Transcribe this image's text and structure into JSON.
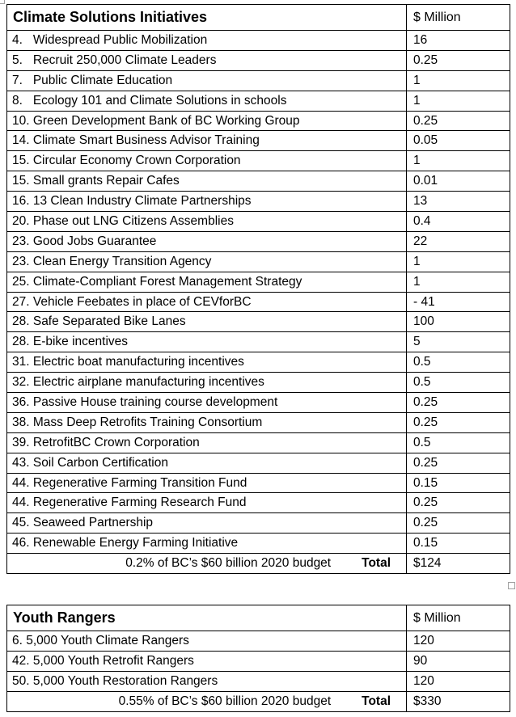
{
  "colors": {
    "background": "#ffffff",
    "table_border": "#000000",
    "text": "#000000",
    "handle_border": "#a0a0a0"
  },
  "tables": [
    {
      "title": "Climate Solutions Initiatives",
      "unit_header": "$ Million",
      "rows": [
        {
          "label": "4.   Widespread Public Mobilization",
          "value": "16"
        },
        {
          "label": "5.   Recruit 250,000 Climate Leaders",
          "value": "0.25"
        },
        {
          "label": "7.   Public Climate Education",
          "value": "1"
        },
        {
          "label": "8.   Ecology 101 and Climate Solutions in schools",
          "value": "1"
        },
        {
          "label": "10. Green Development Bank of BC Working Group",
          "value": "0.25"
        },
        {
          "label": "14. Climate Smart Business Advisor Training",
          "value": "0.05"
        },
        {
          "label": "15. Circular Economy Crown Corporation",
          "value": "1"
        },
        {
          "label": "15. Small grants Repair Cafes",
          "value": "0.01"
        },
        {
          "label": "16. 13 Clean Industry Climate Partnerships",
          "value": "13"
        },
        {
          "label": "20. Phase out LNG Citizens Assemblies",
          "value": "0.4"
        },
        {
          "label": "23. Good Jobs Guarantee",
          "value": "22"
        },
        {
          "label": "23. Clean Energy Transition Agency",
          "value": "1"
        },
        {
          "label": "25. Climate-Compliant Forest Management Strategy",
          "value": "1"
        },
        {
          "label": "27. Vehicle Feebates in place of CEVforBC",
          "value": "- 41"
        },
        {
          "label": "28. Safe Separated Bike Lanes",
          "value": "100"
        },
        {
          "label": "28. E-bike incentives",
          "value": "5"
        },
        {
          "label": "31. Electric boat manufacturing incentives",
          "value": "0.5"
        },
        {
          "label": "32. Electric airplane manufacturing incentives",
          "value": "0.5"
        },
        {
          "label": "36. Passive House training course development",
          "value": "0.25"
        },
        {
          "label": "38. Mass Deep Retrofits Training Consortium",
          "value": "0.25"
        },
        {
          "label": "39. RetrofitBC Crown Corporation",
          "value": "0.5"
        },
        {
          "label": "43. Soil Carbon Certification",
          "value": "0.25"
        },
        {
          "label": "44. Regenerative Farming Transition Fund",
          "value": "0.15"
        },
        {
          "label": "44. Regenerative Farming Research Fund",
          "value": "0.25"
        },
        {
          "label": "45. Seaweed Partnership",
          "value": "0.25"
        },
        {
          "label": "46. Renewable Energy Farming Initiative",
          "value": "0.15"
        }
      ],
      "total_note": "0.2% of BC’s $60 billion 2020 budget",
      "total_label": "Total",
      "total_value": "$124"
    },
    {
      "title": "Youth Rangers",
      "unit_header": "$ Million",
      "rows": [
        {
          "label": "6. 5,000 Youth Climate Rangers",
          "value": "120"
        },
        {
          "label": "42. 5,000 Youth Retrofit Rangers",
          "value": "90"
        },
        {
          "label": "50. 5,000 Youth Restoration Rangers",
          "value": "120"
        }
      ],
      "total_note": "0.55% of BC’s $60 billion 2020 budget",
      "total_label": "Total",
      "total_value": "$330"
    }
  ]
}
